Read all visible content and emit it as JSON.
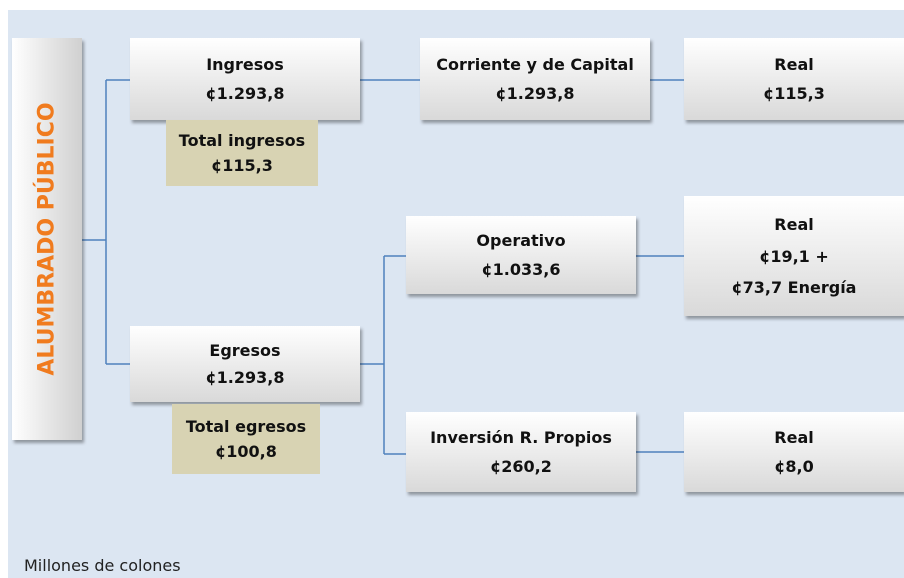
{
  "side_label": "ALUMBRADO PÚBLICO",
  "nodes": [
    {
      "lines": [
        "Ingresos",
        "¢1.293,8"
      ]
    },
    {
      "lines": [
        "Total ingresos",
        "¢115,3"
      ]
    },
    {
      "lines": [
        "Corriente y de Capital",
        "¢1.293,8"
      ]
    },
    {
      "lines": [
        "Real",
        "¢115,3"
      ]
    },
    {
      "lines": [
        "Operativo",
        "¢1.033,6"
      ]
    },
    {
      "lines": [
        "Real",
        "¢19,1 +",
        "¢73,7 Energía"
      ]
    },
    {
      "lines": [
        "Egresos",
        "¢1.293,8"
      ]
    },
    {
      "lines": [
        "Total egresos",
        "¢100,8"
      ]
    },
    {
      "lines": [
        "Inversión R. Propios",
        "¢260,2"
      ]
    },
    {
      "lines": [
        "Real",
        "¢8,0"
      ]
    }
  ],
  "footer": "Millones de colones"
}
